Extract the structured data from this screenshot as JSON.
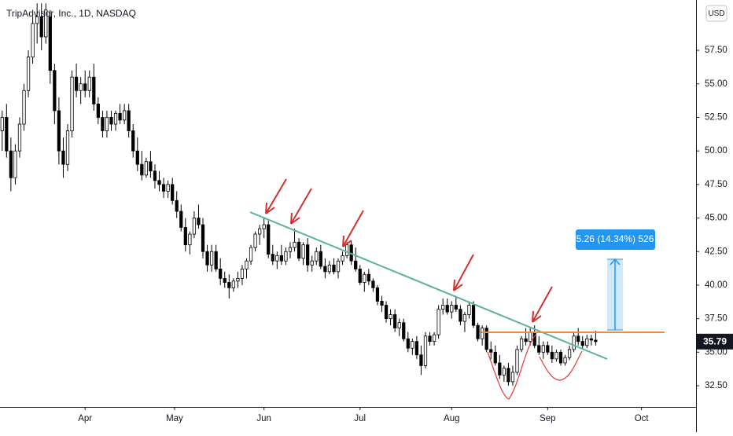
{
  "chart_data": {
    "type": "candlestick",
    "title": "TripAdvisor, Inc., 1D, NASDAQ",
    "currency": "USD",
    "up_color": "#ffffff",
    "down_color": "#000000",
    "border_color": "#000000",
    "ylim": [
      30.92,
      61.25
    ],
    "yticks": [
      {
        "value": 32.5,
        "label": "32.50"
      },
      {
        "value": 35,
        "label": "35.00"
      },
      {
        "value": 37.5,
        "label": "37.50"
      },
      {
        "value": 40,
        "label": "40.00"
      },
      {
        "value": 42.5,
        "label": "42.50"
      },
      {
        "value": 45,
        "label": "45.00"
      },
      {
        "value": 47.5,
        "label": "47.50"
      },
      {
        "value": 50,
        "label": "50.00"
      },
      {
        "value": 52.5,
        "label": "52.50"
      },
      {
        "value": 55,
        "label": "55.00"
      },
      {
        "value": 57.5,
        "label": "57.50"
      }
    ],
    "xlim": [
      -0.5,
      159
    ],
    "xticks": [
      {
        "value": 19,
        "label": "Apr"
      },
      {
        "value": 39.5,
        "label": "May"
      },
      {
        "value": 60,
        "label": "Jun"
      },
      {
        "value": 82,
        "label": "Jul"
      },
      {
        "value": 103,
        "label": "Aug"
      },
      {
        "value": 125,
        "label": "Sep"
      },
      {
        "value": 146.5,
        "label": "Oct"
      }
    ],
    "measure_label": "5.26 (14.34%) 526",
    "ohlc": [
      [
        51.5,
        53,
        50,
        52.5
      ],
      [
        52.5,
        53.5,
        49.5,
        50
      ],
      [
        50,
        51,
        47,
        48
      ],
      [
        48,
        50.5,
        47.5,
        50
      ],
      [
        50,
        52.5,
        49.5,
        52
      ],
      [
        52,
        55,
        51.5,
        54.5
      ],
      [
        54.5,
        57.5,
        54,
        57
      ],
      [
        57,
        60,
        56.5,
        59.5
      ],
      [
        59.5,
        61,
        58,
        60
      ],
      [
        60,
        61,
        57.5,
        58.5
      ],
      [
        58.5,
        61,
        58,
        60.5
      ],
      [
        60,
        60.5,
        55,
        56
      ],
      [
        56,
        56.5,
        52,
        53
      ],
      [
        53,
        54,
        49,
        50
      ],
      [
        50,
        51,
        48,
        49
      ],
      [
        49,
        52,
        48.5,
        51.5
      ],
      [
        51.5,
        56,
        51,
        55.5
      ],
      [
        55.5,
        56.5,
        54,
        54.5
      ],
      [
        54.5,
        55.5,
        53.5,
        55
      ],
      [
        55,
        56,
        54,
        54.5
      ],
      [
        54.5,
        56,
        54,
        55.5
      ],
      [
        55.5,
        56.5,
        53,
        53.5
      ],
      [
        53.5,
        54,
        52,
        52.5
      ],
      [
        52.5,
        53,
        51,
        51.5
      ],
      [
        51.5,
        53,
        51,
        52.5
      ],
      [
        52.5,
        53,
        51.5,
        52
      ],
      [
        52,
        53,
        51.5,
        52.8
      ],
      [
        52.8,
        53.5,
        52,
        52.3
      ],
      [
        52.3,
        53.5,
        52,
        53
      ],
      [
        53,
        53.5,
        51,
        51.5
      ],
      [
        51.5,
        52,
        49.5,
        50
      ],
      [
        50,
        51,
        48.5,
        49
      ],
      [
        49,
        50,
        47.8,
        48.2
      ],
      [
        48.2,
        49.5,
        48,
        49.2
      ],
      [
        49.2,
        50,
        48,
        48.5
      ],
      [
        48.5,
        49,
        47.2,
        47.8
      ],
      [
        47.8,
        48.5,
        47,
        47.5
      ],
      [
        47.5,
        48,
        46.5,
        47
      ],
      [
        47,
        47.8,
        46.5,
        47.5
      ],
      [
        47.5,
        48,
        46,
        46.3
      ],
      [
        46.3,
        47,
        45,
        45.5
      ],
      [
        45.5,
        46,
        44,
        44.3
      ],
      [
        44.3,
        45,
        42.5,
        43
      ],
      [
        43,
        44,
        42.3,
        43.8
      ],
      [
        43.8,
        45.5,
        43.5,
        45
      ],
      [
        45,
        46,
        44.2,
        44.5
      ],
      [
        44.5,
        45,
        42,
        42.5
      ],
      [
        42.5,
        43,
        41,
        41.5
      ],
      [
        41.5,
        43,
        41,
        42.5
      ],
      [
        42.5,
        43,
        41,
        41.2
      ],
      [
        41.2,
        42,
        40,
        40.5
      ],
      [
        40.5,
        41,
        39.8,
        40.2
      ],
      [
        40.2,
        40.8,
        39,
        39.8
      ],
      [
        39.8,
        40.5,
        39.5,
        40.3
      ],
      [
        40.3,
        41,
        39.8,
        40.5
      ],
      [
        40.5,
        41.5,
        40,
        41.2
      ],
      [
        41.2,
        42,
        40.5,
        41.8
      ],
      [
        41.8,
        43,
        41.5,
        42.8
      ],
      [
        42.8,
        44,
        42.5,
        43.8
      ],
      [
        43.8,
        44.5,
        43,
        44.2
      ],
      [
        44.2,
        45,
        43.5,
        44.5
      ],
      [
        44.5,
        44.8,
        42,
        42.3
      ],
      [
        42.3,
        43,
        41.5,
        41.8
      ],
      [
        41.8,
        42.5,
        41.2,
        42.2
      ],
      [
        42.2,
        43,
        41.5,
        41.8
      ],
      [
        41.8,
        42.8,
        41.5,
        42.5
      ],
      [
        42.5,
        43.2,
        42,
        42.8
      ],
      [
        42.8,
        44.2,
        42.5,
        43.2
      ],
      [
        43.2,
        43.5,
        41.8,
        42
      ],
      [
        42,
        43.2,
        41.5,
        43
      ],
      [
        43,
        43.5,
        41,
        41.5
      ],
      [
        41.5,
        42.2,
        41,
        41.8
      ],
      [
        41.8,
        42.8,
        41.5,
        42.5
      ],
      [
        42.5,
        43,
        41.2,
        41.4
      ],
      [
        41.4,
        42,
        40.5,
        41
      ],
      [
        41,
        41.8,
        40.8,
        41.5
      ],
      [
        41.5,
        42,
        40.8,
        41
      ],
      [
        41,
        42,
        40.5,
        41.8
      ],
      [
        41.8,
        42.5,
        41.5,
        42.2
      ],
      [
        42.2,
        43.2,
        42,
        43
      ],
      [
        43,
        43.3,
        41.5,
        41.8
      ],
      [
        41.8,
        42.8,
        41,
        41.2
      ],
      [
        41.2,
        41.5,
        40,
        40.2
      ],
      [
        40.2,
        41,
        39.5,
        40.8
      ],
      [
        40.8,
        41.2,
        40,
        40.3
      ],
      [
        40.3,
        40.5,
        39.5,
        39.8
      ],
      [
        39.8,
        40,
        38.5,
        38.8
      ],
      [
        38.8,
        39.2,
        38,
        38.5
      ],
      [
        38.5,
        38.8,
        37.2,
        37.5
      ],
      [
        37.5,
        38.2,
        37,
        37.8
      ],
      [
        37.8,
        38.2,
        36.5,
        36.8
      ],
      [
        36.8,
        37.5,
        36.2,
        37.2
      ],
      [
        37.2,
        37.5,
        35.8,
        36
      ],
      [
        36,
        36.5,
        35,
        35.3
      ],
      [
        35.3,
        36,
        34.8,
        35.8
      ],
      [
        35.8,
        36.2,
        34.5,
        34.8
      ],
      [
        34.8,
        35.5,
        33.3,
        34
      ],
      [
        34,
        36.5,
        33.8,
        36.2
      ],
      [
        36.2,
        36.5,
        35.5,
        35.8
      ],
      [
        35.8,
        36.5,
        35.5,
        36.3
      ],
      [
        36.3,
        38.5,
        36,
        38.2
      ],
      [
        38.2,
        39,
        37.8,
        38.5
      ],
      [
        38.5,
        39,
        37.8,
        38
      ],
      [
        38,
        38.8,
        37.5,
        38.5
      ],
      [
        38.5,
        39.2,
        38,
        38.2
      ],
      [
        38.2,
        38.5,
        37,
        37.3
      ],
      [
        37.3,
        38,
        36.5,
        37.8
      ],
      [
        37.8,
        38.8,
        37.5,
        38.5
      ],
      [
        38.5,
        38.8,
        36.8,
        37
      ],
      [
        37,
        37.2,
        35.8,
        36
      ],
      [
        36,
        37,
        35.5,
        36.8
      ],
      [
        36.8,
        37,
        35,
        35.2
      ],
      [
        35.2,
        35.8,
        34.5,
        35
      ],
      [
        35,
        35.5,
        34,
        34.2
      ],
      [
        34.2,
        34.8,
        33,
        33.3
      ],
      [
        33.3,
        34,
        32.8,
        33.8
      ],
      [
        33.8,
        34.2,
        32.5,
        32.8
      ],
      [
        32.8,
        34,
        32.5,
        33.5
      ],
      [
        33.5,
        35.5,
        33.3,
        35.2
      ],
      [
        35.2,
        36.2,
        35,
        36
      ],
      [
        36,
        36.8,
        35.5,
        35.8
      ],
      [
        35.8,
        36.8,
        35.5,
        36.5
      ],
      [
        36.5,
        37,
        35.3,
        35.5
      ],
      [
        35.5,
        36.2,
        34.8,
        35
      ],
      [
        35,
        35.8,
        34.5,
        35.5
      ],
      [
        35.5,
        35.8,
        34.8,
        35
      ],
      [
        35,
        35.5,
        34.2,
        34.5
      ],
      [
        34.5,
        35.2,
        34.3,
        35
      ],
      [
        35,
        35.2,
        34,
        34.2
      ],
      [
        34.2,
        34.8,
        34,
        34.6
      ],
      [
        34.6,
        35.5,
        34.4,
        35.2
      ],
      [
        35.2,
        36.5,
        35,
        36.2
      ],
      [
        36.2,
        36.8,
        35.5,
        35.8
      ],
      [
        35.8,
        36.2,
        35.2,
        35.5
      ],
      [
        35.5,
        36.3,
        35.3,
        36
      ],
      [
        36,
        36.3,
        35.5,
        35.9
      ],
      [
        35.9,
        36.6,
        35.5,
        35.79
      ]
    ]
  }
}
